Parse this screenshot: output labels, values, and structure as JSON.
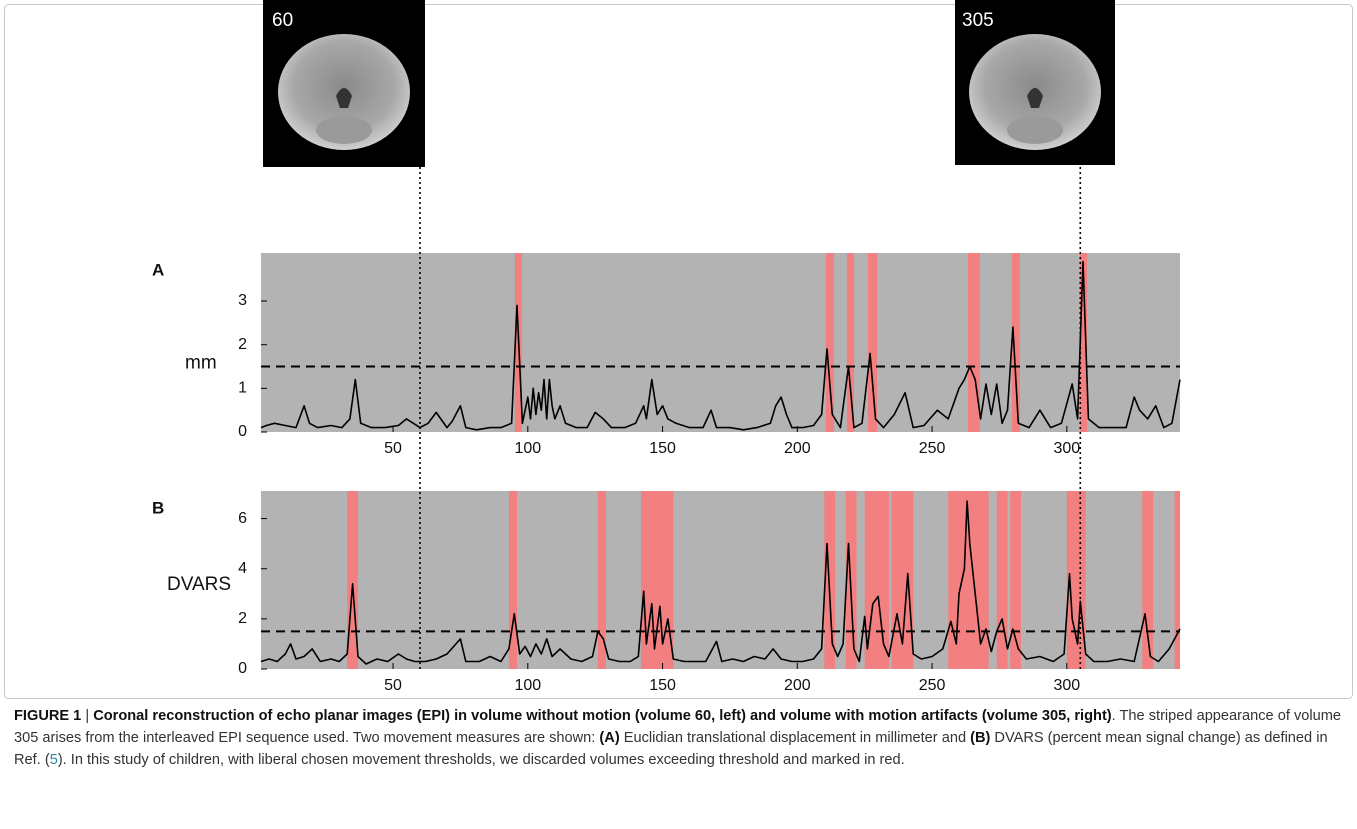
{
  "images": [
    {
      "volume": 60
    },
    {
      "volume": 305
    }
  ],
  "chart_data": [
    {
      "type": "line",
      "panel": "A",
      "ylabel": "mm",
      "xlim": [
        1,
        342
      ],
      "ylim": [
        0,
        4.1
      ],
      "xticks": [
        50,
        100,
        150,
        200,
        250,
        300
      ],
      "yticks": [
        0,
        1,
        2,
        3
      ],
      "threshold": 1.5,
      "background": "#b3b3b3",
      "highlight_color": "#f28080",
      "color": "#000000",
      "highlights": [
        [
          95.2,
          97.8
        ],
        [
          210.6,
          213.6
        ],
        [
          218.4,
          221
        ],
        [
          226.2,
          229.6
        ],
        [
          263.3,
          267.8
        ],
        [
          279.6,
          282.6
        ],
        [
          304.9,
          307.5
        ]
      ],
      "x": [
        1,
        3,
        6,
        10,
        14,
        17,
        19,
        22,
        27,
        31,
        34,
        36,
        38,
        42,
        47,
        52,
        55,
        60,
        63,
        66,
        70,
        72,
        75,
        77,
        81,
        86,
        90,
        94,
        96,
        98,
        100,
        101,
        102,
        103,
        104,
        105,
        106,
        107,
        108,
        109,
        110,
        112,
        114,
        118,
        122,
        125,
        128,
        131,
        136,
        140,
        143,
        144,
        146,
        148,
        150,
        152,
        155,
        160,
        165,
        168,
        170,
        175,
        180,
        185,
        190,
        192,
        194,
        196,
        198,
        202,
        206,
        209,
        211,
        213,
        216,
        219,
        221,
        224,
        227,
        229,
        232,
        236,
        240,
        243,
        247,
        252,
        256,
        260,
        262,
        264,
        266,
        268,
        270,
        272,
        274,
        276,
        278,
        280,
        282,
        286,
        290,
        294,
        298,
        302,
        304,
        306,
        308,
        312,
        318,
        322,
        325,
        327,
        330,
        333,
        336,
        339,
        342
      ],
      "values": [
        0.1,
        0.15,
        0.2,
        0.15,
        0.1,
        0.6,
        0.2,
        0.1,
        0.15,
        0.1,
        0.3,
        1.2,
        0.2,
        0.1,
        0.1,
        0.15,
        0.3,
        0.1,
        0.2,
        0.45,
        0.1,
        0.25,
        0.6,
        0.1,
        0.05,
        0.1,
        0.1,
        0.2,
        2.9,
        0.2,
        0.8,
        0.3,
        1.0,
        0.4,
        0.9,
        0.5,
        1.2,
        0.3,
        1.2,
        0.6,
        0.3,
        0.6,
        0.2,
        0.1,
        0.1,
        0.45,
        0.3,
        0.1,
        0.1,
        0.2,
        0.6,
        0.3,
        1.2,
        0.4,
        0.6,
        0.3,
        0.2,
        0.1,
        0.1,
        0.5,
        0.1,
        0.1,
        0.05,
        0.1,
        0.2,
        0.6,
        0.8,
        0.4,
        0.1,
        0.1,
        0.15,
        0.4,
        1.9,
        0.4,
        0.1,
        1.5,
        0.1,
        0.2,
        1.8,
        0.3,
        0.1,
        0.4,
        0.9,
        0.1,
        0.15,
        0.5,
        0.3,
        1.0,
        1.2,
        1.5,
        1.2,
        0.3,
        1.1,
        0.4,
        1.1,
        0.2,
        0.5,
        2.4,
        0.2,
        0.1,
        0.5,
        0.1,
        0.2,
        1.1,
        0.3,
        3.9,
        0.3,
        0.1,
        0.1,
        0.1,
        0.8,
        0.5,
        0.3,
        0.6,
        0.1,
        0.2,
        1.2
      ]
    },
    {
      "type": "line",
      "panel": "B",
      "ylabel": "DVARS",
      "xlim": [
        1,
        342
      ],
      "ylim": [
        0,
        7.1
      ],
      "xticks": [
        50,
        100,
        150,
        200,
        250,
        300
      ],
      "yticks": [
        0,
        2,
        4,
        6
      ],
      "threshold": 1.5,
      "background": "#b3b3b3",
      "highlight_color": "#f28080",
      "color": "#000000",
      "highlights": [
        [
          33,
          37
        ],
        [
          93,
          96
        ],
        [
          126,
          129
        ],
        [
          142,
          154
        ],
        [
          210,
          214
        ],
        [
          218,
          222
        ],
        [
          225,
          234
        ],
        [
          235,
          243
        ],
        [
          256,
          271
        ],
        [
          274,
          278
        ],
        [
          279,
          283
        ],
        [
          300,
          307
        ],
        [
          328,
          332
        ],
        [
          340,
          342
        ]
      ],
      "x": [
        1,
        4,
        7,
        10,
        12,
        14,
        17,
        20,
        23,
        27,
        30,
        33,
        35,
        37,
        40,
        44,
        48,
        52,
        55,
        58,
        62,
        66,
        70,
        75,
        77,
        82,
        86,
        90,
        93,
        95,
        97,
        99,
        101,
        103,
        105,
        107,
        109,
        112,
        116,
        120,
        124,
        126,
        128,
        130,
        134,
        138,
        141,
        143,
        144,
        146,
        147,
        149,
        150,
        152,
        154,
        158,
        162,
        166,
        170,
        172,
        176,
        180,
        184,
        188,
        191,
        194,
        198,
        202,
        206,
        209,
        211,
        213,
        215,
        217,
        219,
        221,
        223,
        225,
        226,
        228,
        230,
        232,
        234,
        237,
        239,
        241,
        243,
        246,
        250,
        254,
        257,
        259,
        260,
        262,
        263,
        264,
        266,
        268,
        270,
        272,
        274,
        276,
        278,
        280,
        282,
        285,
        290,
        295,
        299,
        301,
        302,
        304,
        305,
        307,
        310,
        315,
        320,
        325,
        329,
        331,
        334,
        338,
        342
      ],
      "values": [
        0.3,
        0.4,
        0.3,
        0.6,
        1.0,
        0.4,
        0.5,
        0.8,
        0.3,
        0.4,
        0.3,
        0.6,
        3.4,
        0.5,
        0.2,
        0.4,
        0.3,
        0.6,
        0.4,
        0.3,
        0.3,
        0.4,
        0.6,
        1.2,
        0.3,
        0.3,
        0.5,
        0.3,
        0.8,
        2.2,
        0.6,
        0.9,
        0.5,
        1.0,
        0.6,
        1.2,
        0.5,
        0.8,
        0.4,
        0.3,
        0.5,
        1.5,
        1.2,
        0.4,
        0.3,
        0.3,
        0.5,
        3.1,
        1.0,
        2.6,
        0.8,
        2.5,
        1.0,
        2.0,
        0.4,
        0.3,
        0.3,
        0.3,
        1.1,
        0.3,
        0.4,
        0.3,
        0.5,
        0.4,
        0.8,
        0.4,
        0.3,
        0.3,
        0.4,
        0.8,
        5.0,
        1.0,
        0.5,
        1.0,
        5.0,
        0.8,
        0.3,
        2.1,
        0.8,
        2.6,
        2.9,
        1.0,
        0.5,
        2.2,
        1.0,
        3.8,
        0.6,
        0.4,
        0.5,
        0.8,
        1.9,
        1.0,
        3.0,
        4.0,
        6.7,
        5.0,
        3.0,
        1.0,
        1.6,
        0.7,
        1.5,
        2.0,
        0.8,
        1.6,
        0.8,
        0.4,
        0.5,
        0.3,
        0.6,
        3.8,
        2.0,
        1.0,
        2.7,
        0.6,
        0.3,
        0.3,
        0.4,
        0.3,
        2.2,
        0.5,
        0.3,
        0.8,
        1.6
      ]
    }
  ],
  "caption": {
    "runs": [
      {
        "text": "FIGURE 1",
        "bold": true
      },
      {
        "text": " | "
      },
      {
        "text": "Coronal reconstruction of echo planar images (EPI) in volume without motion (volume 60, left) and volume with motion artifacts (volume 305, right)",
        "bold": true
      },
      {
        "text": ". The striped appearance of volume 305 arises from the interleaved EPI sequence used. Two movement measures are shown: "
      },
      {
        "text": "(A)",
        "bold": true
      },
      {
        "text": " Euclidian translational displacement in millimeter and "
      },
      {
        "text": "(B)",
        "bold": true
      },
      {
        "text": " DVARS (percent mean signal change) as defined in Ref. ("
      },
      {
        "text": "5",
        "color": "#2a8a9e"
      },
      {
        "text": "). In this study of children, with liberal chosen movement thresholds, we discarded volumes exceeding threshold and marked in red."
      }
    ]
  }
}
